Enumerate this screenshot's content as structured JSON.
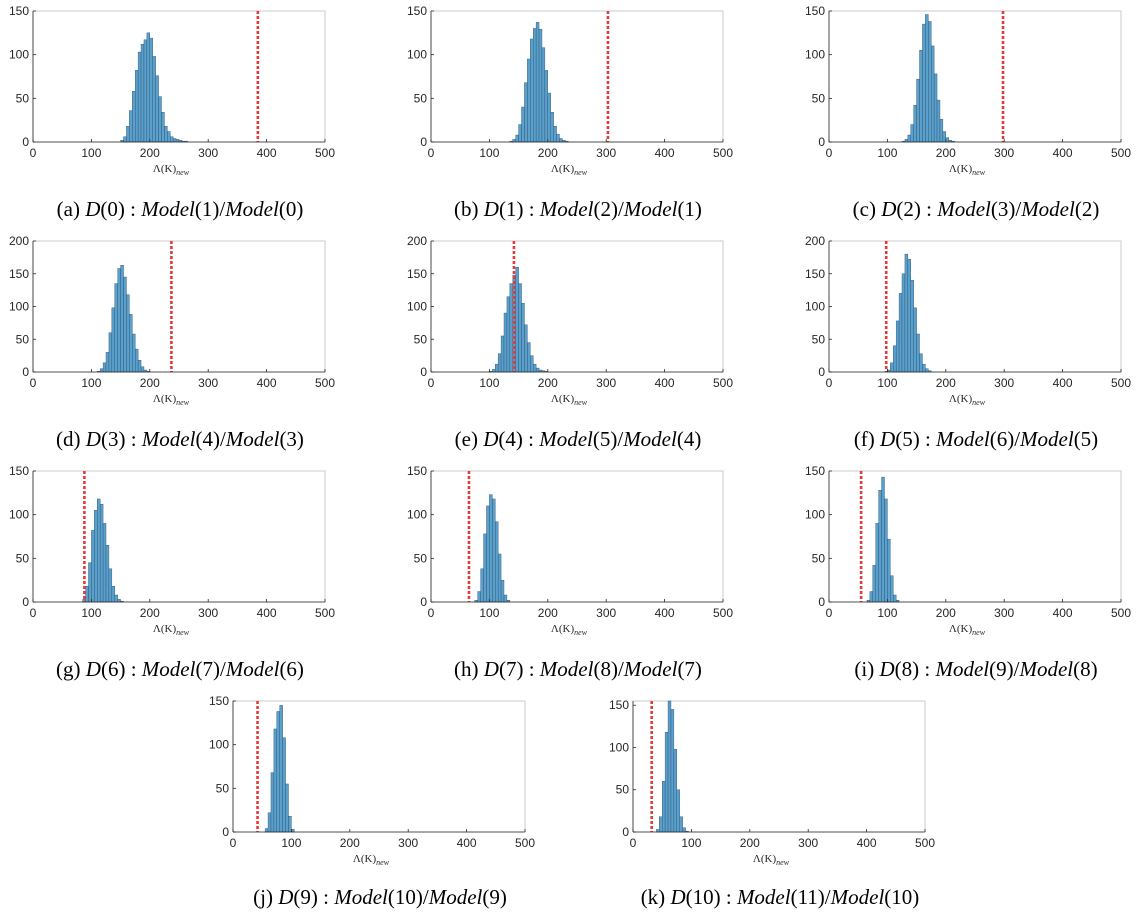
{
  "figure": {
    "x_tick_labels": [
      "0",
      "100",
      "200",
      "300",
      "400",
      "500"
    ],
    "xlabel_base": "Λ(K)",
    "xlabel_sub": "new",
    "bar_color": "#5aa0cd",
    "bar_edge": "#2b4e6a",
    "line_color": "#e8393a"
  },
  "chart_data": [
    {
      "type": "bar",
      "panel": "a",
      "caption": {
        "tag": "(a)",
        "d_index": "0",
        "model_num": "1",
        "model_den": "0"
      },
      "xlim": [
        0,
        500
      ],
      "ylim": [
        0,
        150
      ],
      "y_ticks": [
        "0",
        "50",
        "100",
        "150"
      ],
      "bin_width": 5,
      "bin_starts": [
        150,
        155,
        160,
        165,
        170,
        175,
        180,
        185,
        190,
        195,
        200,
        205,
        210,
        215,
        220,
        225,
        230,
        235,
        240,
        245,
        250,
        255,
        260
      ],
      "counts": [
        2,
        6,
        18,
        36,
        58,
        82,
        103,
        112,
        117,
        125,
        119,
        98,
        76,
        52,
        34,
        18,
        12,
        6,
        4,
        3,
        2,
        1,
        1
      ],
      "threshold": 385
    },
    {
      "type": "bar",
      "panel": "b",
      "caption": {
        "tag": "(b)",
        "d_index": "1",
        "model_num": "2",
        "model_den": "1"
      },
      "xlim": [
        0,
        500
      ],
      "ylim": [
        0,
        150
      ],
      "y_ticks": [
        "0",
        "50",
        "100",
        "150"
      ],
      "bin_width": 5,
      "bin_starts": [
        135,
        140,
        145,
        150,
        155,
        160,
        165,
        170,
        175,
        180,
        185,
        190,
        195,
        200,
        205,
        210,
        215,
        220,
        225,
        230
      ],
      "counts": [
        1,
        3,
        8,
        20,
        40,
        68,
        95,
        118,
        130,
        137,
        129,
        108,
        82,
        56,
        34,
        18,
        9,
        4,
        2,
        1
      ],
      "threshold": 303
    },
    {
      "type": "bar",
      "panel": "c",
      "caption": {
        "tag": "(c)",
        "d_index": "2",
        "model_num": "3",
        "model_den": "2"
      },
      "xlim": [
        0,
        500
      ],
      "ylim": [
        0,
        150
      ],
      "y_ticks": [
        "0",
        "50",
        "100",
        "150"
      ],
      "bin_width": 5,
      "bin_starts": [
        125,
        130,
        135,
        140,
        145,
        150,
        155,
        160,
        165,
        170,
        175,
        180,
        185,
        190,
        195,
        200,
        205,
        210
      ],
      "counts": [
        1,
        3,
        8,
        20,
        42,
        72,
        105,
        135,
        146,
        138,
        110,
        78,
        48,
        26,
        12,
        5,
        2,
        1
      ],
      "threshold": 298
    },
    {
      "type": "bar",
      "panel": "d",
      "caption": {
        "tag": "(d)",
        "d_index": "3",
        "model_num": "4",
        "model_den": "3"
      },
      "xlim": [
        0,
        500
      ],
      "ylim": [
        0,
        200
      ],
      "y_ticks": [
        "0",
        "50",
        "100",
        "150",
        "200"
      ],
      "bin_width": 5,
      "bin_starts": [
        110,
        115,
        120,
        125,
        130,
        135,
        140,
        145,
        150,
        155,
        160,
        165,
        170,
        175,
        180,
        185,
        190,
        195
      ],
      "counts": [
        1,
        5,
        14,
        30,
        60,
        98,
        135,
        158,
        163,
        145,
        118,
        88,
        58,
        35,
        18,
        8,
        3,
        1
      ],
      "threshold": 237
    },
    {
      "type": "bar",
      "panel": "e",
      "caption": {
        "tag": "(e)",
        "d_index": "4",
        "model_num": "5",
        "model_den": "4"
      },
      "xlim": [
        0,
        500
      ],
      "ylim": [
        0,
        200
      ],
      "y_ticks": [
        "0",
        "50",
        "100",
        "150",
        "200"
      ],
      "bin_width": 5,
      "bin_starts": [
        100,
        105,
        110,
        115,
        120,
        125,
        130,
        135,
        140,
        145,
        150,
        155,
        160,
        165,
        170,
        175,
        180,
        185,
        190,
        195
      ],
      "counts": [
        1,
        4,
        12,
        28,
        55,
        90,
        115,
        135,
        148,
        160,
        135,
        105,
        72,
        45,
        25,
        12,
        6,
        3,
        2,
        1
      ],
      "threshold": 142
    },
    {
      "type": "bar",
      "panel": "f",
      "caption": {
        "tag": "(f)",
        "d_index": "5",
        "model_num": "6",
        "model_den": "5"
      },
      "xlim": [
        0,
        500
      ],
      "ylim": [
        0,
        200
      ],
      "y_ticks": [
        "0",
        "50",
        "100",
        "150",
        "200"
      ],
      "bin_width": 5,
      "bin_starts": [
        100,
        105,
        110,
        115,
        120,
        125,
        130,
        135,
        140,
        145,
        150,
        155,
        160,
        165,
        170
      ],
      "counts": [
        3,
        14,
        40,
        78,
        120,
        150,
        180,
        172,
        140,
        98,
        58,
        28,
        12,
        5,
        2
      ],
      "threshold": 98
    },
    {
      "type": "bar",
      "panel": "g",
      "caption": {
        "tag": "(g)",
        "d_index": "6",
        "model_num": "7",
        "model_den": "6"
      },
      "xlim": [
        0,
        500
      ],
      "ylim": [
        0,
        150
      ],
      "y_ticks": [
        "0",
        "50",
        "100",
        "150"
      ],
      "bin_width": 5,
      "bin_starts": [
        85,
        90,
        95,
        100,
        105,
        110,
        115,
        120,
        125,
        130,
        135,
        140,
        145,
        150
      ],
      "counts": [
        3,
        18,
        45,
        82,
        105,
        118,
        112,
        90,
        65,
        38,
        18,
        8,
        3,
        1
      ],
      "threshold": 88
    },
    {
      "type": "bar",
      "panel": "h",
      "caption": {
        "tag": "(h)",
        "d_index": "7",
        "model_num": "8",
        "model_den": "7"
      },
      "xlim": [
        0,
        500
      ],
      "ylim": [
        0,
        150
      ],
      "y_ticks": [
        "0",
        "50",
        "100",
        "150"
      ],
      "bin_width": 5,
      "bin_starts": [
        75,
        80,
        85,
        90,
        95,
        100,
        105,
        110,
        115,
        120,
        125,
        130
      ],
      "counts": [
        2,
        12,
        38,
        78,
        110,
        123,
        118,
        92,
        55,
        25,
        8,
        2
      ],
      "threshold": 65
    },
    {
      "type": "bar",
      "panel": "i",
      "caption": {
        "tag": "(i)",
        "d_index": "8",
        "model_num": "9",
        "model_den": "8"
      },
      "xlim": [
        0,
        500
      ],
      "ylim": [
        0,
        150
      ],
      "y_ticks": [
        "0",
        "50",
        "100",
        "150"
      ],
      "bin_width": 5,
      "bin_starts": [
        65,
        70,
        75,
        80,
        85,
        90,
        95,
        100,
        105,
        110,
        115
      ],
      "counts": [
        2,
        12,
        42,
        90,
        128,
        143,
        118,
        72,
        30,
        8,
        2
      ],
      "threshold": 55
    },
    {
      "type": "bar",
      "panel": "j",
      "caption": {
        "tag": "(j)",
        "d_index": "9",
        "model_num": "10",
        "model_den": "9"
      },
      "xlim": [
        0,
        500
      ],
      "ylim": [
        0,
        150
      ],
      "y_ticks": [
        "0",
        "50",
        "100",
        "150"
      ],
      "bin_width": 5,
      "bin_starts": [
        55,
        60,
        65,
        70,
        75,
        80,
        85,
        90,
        95,
        100
      ],
      "counts": [
        4,
        22,
        68,
        118,
        138,
        145,
        108,
        55,
        18,
        3
      ],
      "threshold": 42
    },
    {
      "type": "bar",
      "panel": "k",
      "caption": {
        "tag": "(k)",
        "d_index": "10",
        "model_num": "11",
        "model_den": "10"
      },
      "xlim": [
        0,
        500
      ],
      "ylim": [
        0,
        155
      ],
      "y_ticks": [
        "0",
        "50",
        "100",
        "150"
      ],
      "bin_width": 5,
      "bin_starts": [
        40,
        45,
        50,
        55,
        60,
        65,
        70,
        75,
        80,
        85,
        90
      ],
      "counts": [
        3,
        18,
        60,
        118,
        155,
        145,
        98,
        50,
        18,
        5,
        1
      ],
      "threshold": 32
    }
  ]
}
